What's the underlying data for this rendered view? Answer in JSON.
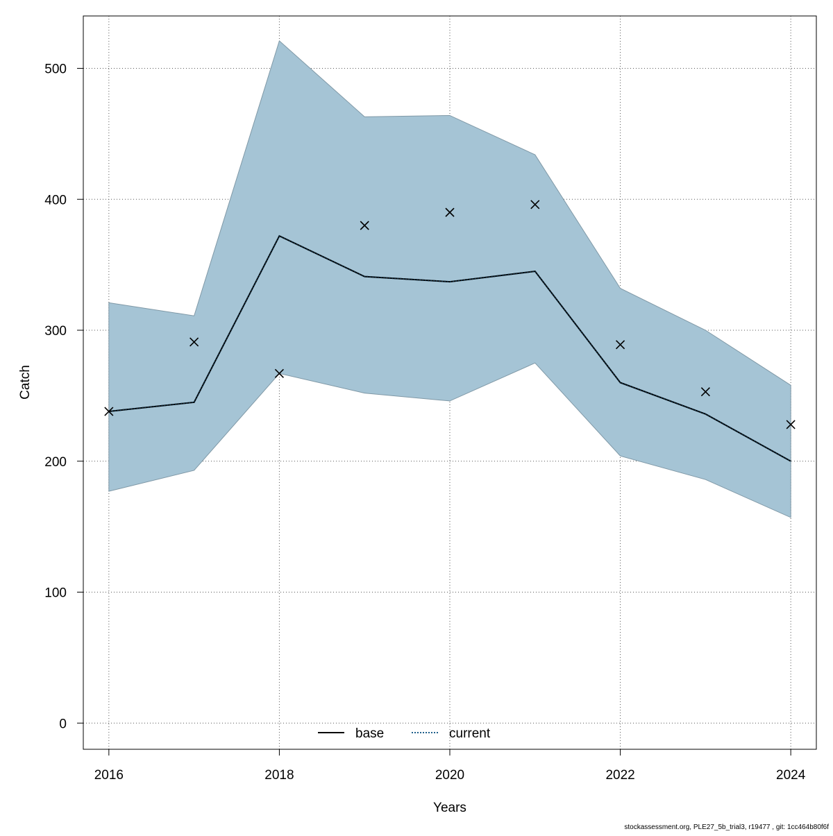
{
  "chart_data": {
    "type": "line",
    "title": "",
    "xlabel": "Years",
    "ylabel": "Catch",
    "xlim": [
      2015.7,
      2024.3
    ],
    "ylim": [
      -20,
      540
    ],
    "x_ticks": [
      2016,
      2018,
      2020,
      2022,
      2024
    ],
    "x_tick_labels": [
      "2016",
      "2018",
      "2020",
      "2022",
      "2024"
    ],
    "y_ticks": [
      0,
      100,
      200,
      300,
      400,
      500
    ],
    "y_tick_labels": [
      "0",
      "100",
      "200",
      "300",
      "400",
      "500"
    ],
    "x_grid": [
      2016,
      2018,
      2020,
      2022,
      2024
    ],
    "grid": true,
    "legend_position": "bottom-center",
    "x": [
      2016,
      2017,
      2018,
      2019,
      2020,
      2021,
      2022,
      2023,
      2024
    ],
    "series": [
      {
        "name": "base",
        "style": "solid",
        "color": "#000000",
        "values": [
          238,
          245,
          372,
          341,
          337,
          345,
          260,
          236,
          200
        ]
      },
      {
        "name": "current",
        "style": "dotted",
        "color": "#1f5f8b",
        "values": [
          238,
          245,
          372,
          341,
          337,
          345,
          260,
          236,
          200
        ]
      }
    ],
    "confidence_band": {
      "color": "#a5c4d5",
      "upper": [
        321,
        311,
        521,
        463,
        464,
        434,
        332,
        300,
        258
      ],
      "lower": [
        177,
        193,
        267,
        252,
        246,
        275,
        204,
        186,
        157
      ]
    },
    "observations": {
      "marker": "x",
      "values": [
        238,
        291,
        267,
        380,
        390,
        396,
        289,
        253,
        228
      ]
    }
  },
  "footer": {
    "note": "stockassessment.org, PLE27_5b_trial3, r19477 , git: 1cc464b80f6f"
  }
}
